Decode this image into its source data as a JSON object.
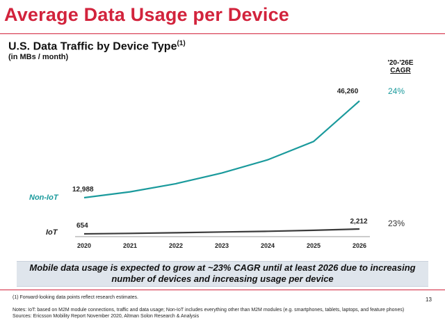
{
  "slide_title": "Average Data Usage per Device",
  "chart_title": "U.S. Data Traffic by Device Type",
  "chart_title_sup": "(1)",
  "chart_subtitle": "(in MBs / month)",
  "cagr_header_line1": "'20-'26E",
  "cagr_header_line2": "CAGR",
  "colors": {
    "accent": "#d2233c",
    "non_iot": "#1a9a9c",
    "iot": "#3a3a3a",
    "callout_bg": "#dfe5ec"
  },
  "chart_data": {
    "type": "line",
    "x": [
      "2020",
      "2021",
      "2022",
      "2023",
      "2024",
      "2025",
      "2026"
    ],
    "series": [
      {
        "name": "Non-IoT",
        "values": [
          12988,
          14990,
          17800,
          21450,
          26000,
          32300,
          46260
        ],
        "cagr": "24%",
        "start_label": "12,988",
        "end_label": "46,260"
      },
      {
        "name": "IoT",
        "values": [
          654,
          800,
          1000,
          1250,
          1480,
          1800,
          2212
        ],
        "cagr": "23%",
        "start_label": "654",
        "end_label": "2,212"
      }
    ]
  },
  "callout": "Mobile data usage is expected to grow at ~23% CAGR until at least 2026 due to increasing number of devices and increasing usage per device",
  "footnote_1": "(1)   Forward-looking data points reflect research estimates.",
  "notes": "Notes: IoT: based on M2M module connections, traffic and data usage; Non-IoT includes everything other than M2M modules (e.g. smartphones, tablets, laptops, and feature phones)",
  "sources": "Sources: Ericsson Mobility Report November 2020, Altman Solon Research & Analysis",
  "page_number": "13"
}
